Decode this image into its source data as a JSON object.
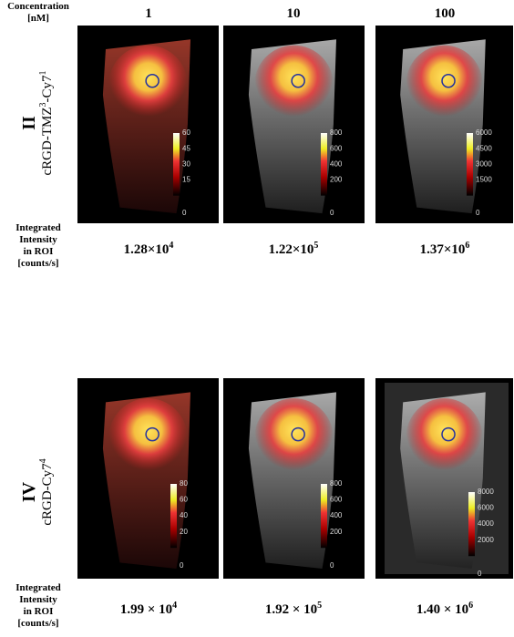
{
  "header": {
    "concentration_label": [
      "Concentration",
      "[nM]"
    ],
    "columns": [
      "1",
      "10",
      "100"
    ]
  },
  "panels": [
    {
      "roman": "II",
      "compound": [
        {
          "text": "cRGD-TMZ"
        },
        {
          "sup": "3"
        },
        {
          "text": "-Cy7"
        },
        {
          "sup": "1"
        }
      ],
      "intensity_label": [
        "Integrated",
        "Intensity",
        "in ROI",
        "[counts/s]"
      ],
      "intensities": [
        {
          "base": "1.28×10",
          "exp": "4"
        },
        {
          "base": "1.22×10",
          "exp": "5"
        },
        {
          "base": "1.37×10",
          "exp": "6"
        }
      ],
      "colorbars": [
        [
          60,
          45,
          30,
          15,
          0
        ],
        [
          800,
          600,
          400,
          200,
          0
        ],
        [
          6000,
          4500,
          3000,
          1500,
          0
        ]
      ]
    },
    {
      "roman": "IV",
      "compound": [
        {
          "text": "cRGD-Cy7"
        },
        {
          "sup": "4"
        }
      ],
      "intensity_label": [
        "Integrated",
        "Intensity",
        "in ROI",
        "[counts/s]"
      ],
      "intensities": [
        {
          "base": "1.99 × 10",
          "exp": "4"
        },
        {
          "base": "1.92 × 10",
          "exp": "5"
        },
        {
          "base": "1.40 × 10",
          "exp": "6"
        }
      ],
      "colorbars": [
        [
          80,
          60,
          40,
          20,
          0
        ],
        [
          800,
          600,
          400,
          200,
          0
        ],
        [
          8000,
          6000,
          4000,
          2000,
          0
        ]
      ]
    }
  ]
}
